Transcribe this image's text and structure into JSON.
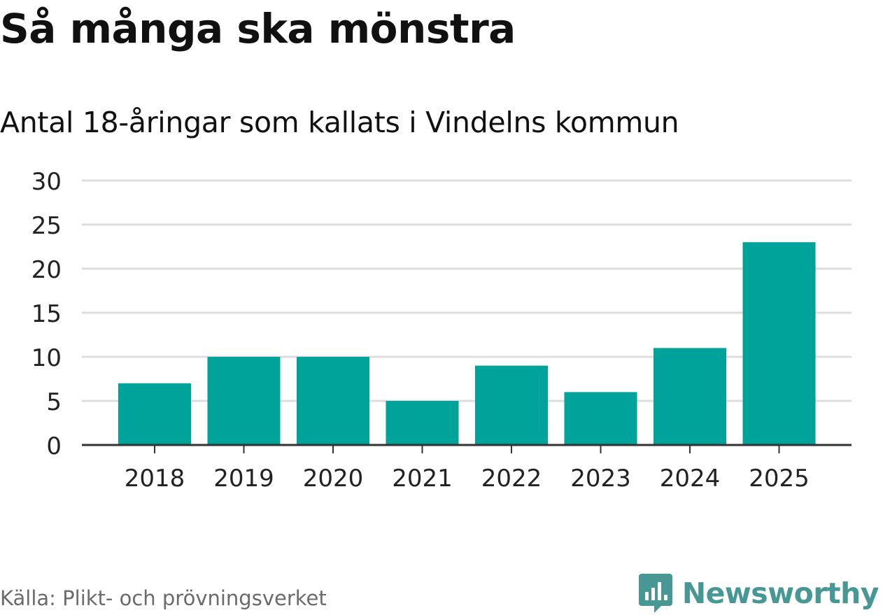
{
  "title": "Så många ska mönstra",
  "subtitle": "Antal 18-åringar som kallats i Vindelns kommun",
  "source": "Källa: Plikt- och prövningsverket",
  "brand": {
    "name": "Newsworthy",
    "color": "#479894"
  },
  "colors": {
    "bar": "#00A39A",
    "grid": "#DDDDDD",
    "axis": "#333333",
    "tick_text": "#222222"
  },
  "chart_data": {
    "type": "bar",
    "title": "Så många ska mönstra",
    "subtitle": "Antal 18-åringar som kallats i Vindelns kommun",
    "categories": [
      "2018",
      "2019",
      "2020",
      "2021",
      "2022",
      "2023",
      "2024",
      "2025"
    ],
    "values": [
      7,
      10,
      10,
      5,
      9,
      6,
      11,
      23
    ],
    "yticks": [
      0,
      5,
      10,
      15,
      20,
      25,
      30
    ],
    "ylim": [
      0,
      30
    ],
    "xlabel": "",
    "ylabel": "",
    "grid": true,
    "legend": "none"
  }
}
